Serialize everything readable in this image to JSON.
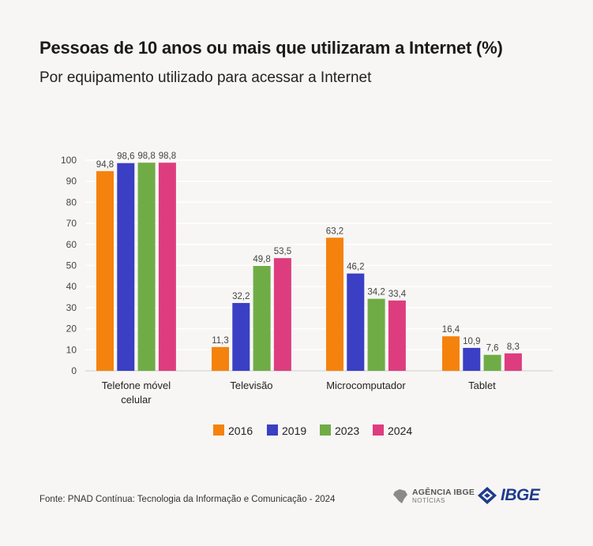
{
  "title": "Pessoas de 10 anos ou mais que utilizaram a Internet (%)",
  "subtitle": "Por equipamento utilizado para acessar a Internet",
  "source": "Fonte: PNAD Contínua: Tecnologia da Informação e Comunicação - 2024",
  "logos": {
    "agencia_main": "AGÊNCIA IBGE",
    "agencia_sub": "NOTÍCIAS",
    "ibge": "IBGE"
  },
  "chart_data": {
    "type": "bar",
    "title": "Pessoas de 10 anos ou mais que utilizaram a Internet (%)",
    "subtitle": "Por equipamento utilizado para acessar a Internet",
    "xlabel": "",
    "ylabel": "",
    "ylim": [
      0,
      100
    ],
    "yticks": [
      "0",
      "10",
      "20",
      "30",
      "40",
      "50",
      "60",
      "70",
      "80",
      "90",
      "100"
    ],
    "grid": true,
    "legend_position": "bottom",
    "categories": [
      [
        "Telefone móvel",
        "celular"
      ],
      [
        "Televisão"
      ],
      [
        "Microcomputador"
      ],
      [
        "Tablet"
      ]
    ],
    "series": [
      {
        "name": "2016",
        "color": "#f5820d",
        "values": [
          94.8,
          11.3,
          63.2,
          16.4
        ],
        "labels": [
          "94,8",
          "11,3",
          "63,2",
          "16,4"
        ]
      },
      {
        "name": "2019",
        "color": "#3a3fc4",
        "values": [
          98.6,
          32.2,
          46.2,
          10.9
        ],
        "labels": [
          "98,6",
          "32,2",
          "46,2",
          "10,9"
        ]
      },
      {
        "name": "2023",
        "color": "#6fac46",
        "values": [
          98.8,
          49.8,
          34.2,
          7.6
        ],
        "labels": [
          "98,8",
          "49,8",
          "34,2",
          "7,6"
        ]
      },
      {
        "name": "2024",
        "color": "#dd3d7e",
        "values": [
          98.8,
          53.5,
          33.4,
          8.3
        ],
        "labels": [
          "98,8",
          "53,5",
          "33,4",
          "8,3"
        ]
      }
    ]
  }
}
